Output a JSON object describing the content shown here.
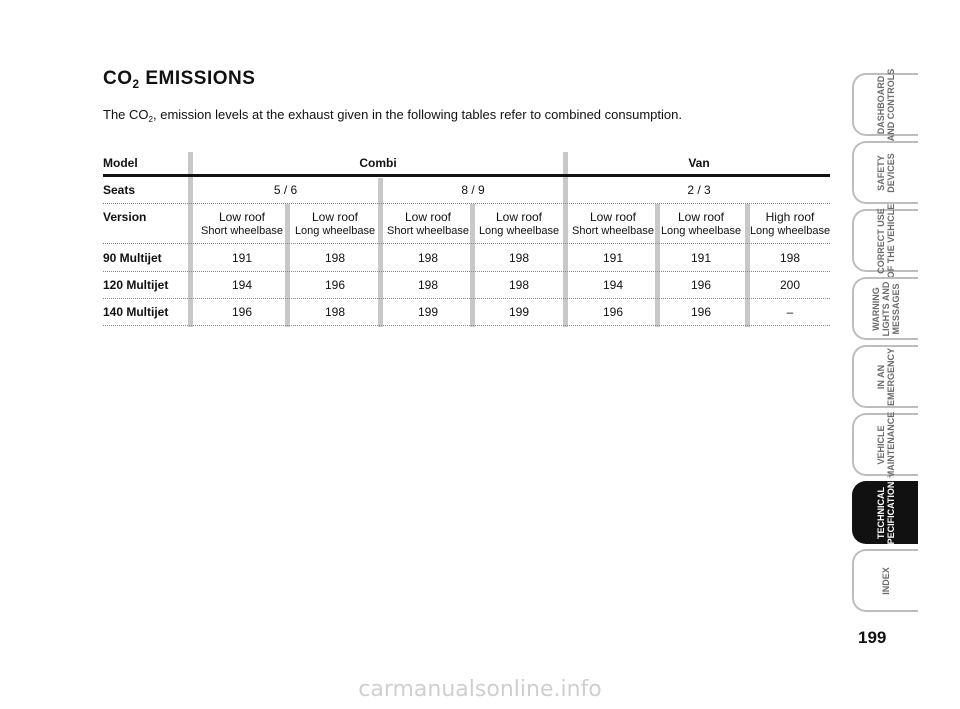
{
  "heading": {
    "prefix": "CO",
    "sub": "2",
    "suffix": " EMISSIONS"
  },
  "intro": {
    "prefix": "The CO",
    "sub": "2",
    "suffix": ", emission levels at the exhaust given in the following tables refer to combined consumption."
  },
  "table": {
    "model_label": "Model",
    "group_combi": "Combi",
    "group_van": "Van",
    "seats_label": "Seats",
    "seats": [
      "5 / 6",
      "8 / 9",
      "2 / 3"
    ],
    "version_label": "Version",
    "versions": [
      {
        "line1": "Low roof",
        "line2": "Short wheelbase"
      },
      {
        "line1": "Low roof",
        "line2": "Long wheelbase"
      },
      {
        "line1": "Low roof",
        "line2": "Short wheelbase"
      },
      {
        "line1": "Low roof",
        "line2": "Long wheelbase"
      },
      {
        "line1": "Low roof",
        "line2": "Short wheelbase"
      },
      {
        "line1": "Low roof",
        "line2": "Long wheelbase"
      },
      {
        "line1": "High roof",
        "line2": "Long wheelbase"
      }
    ],
    "rows": [
      {
        "label": "90 Multijet",
        "values": [
          "191",
          "198",
          "198",
          "198",
          "191",
          "191",
          "198"
        ]
      },
      {
        "label": "120 Multijet",
        "values": [
          "194",
          "196",
          "198",
          "198",
          "194",
          "196",
          "200"
        ]
      },
      {
        "label": "140 Multijet",
        "values": [
          "196",
          "198",
          "199",
          "199",
          "196",
          "196",
          "–"
        ]
      }
    ]
  },
  "tabs": [
    {
      "label": "DASHBOARD\nAND CONTROLS",
      "active": false
    },
    {
      "label": "SAFETY\nDEVICES",
      "active": false
    },
    {
      "label": "CORRECT USE\nOF THE VEHICLE",
      "active": false
    },
    {
      "label": "WARNING\nLIGHTS AND\nMESSAGES",
      "active": false
    },
    {
      "label": "IN AN\nEMERGENCY",
      "active": false
    },
    {
      "label": "VEHICLE\nMAINTENANCE",
      "active": false
    },
    {
      "label": "TECHNICAL\nSPECIFICATIONS",
      "active": true
    },
    {
      "label": "INDEX",
      "active": false
    }
  ],
  "page_number": "199",
  "watermark": "carmanualsonline.info"
}
